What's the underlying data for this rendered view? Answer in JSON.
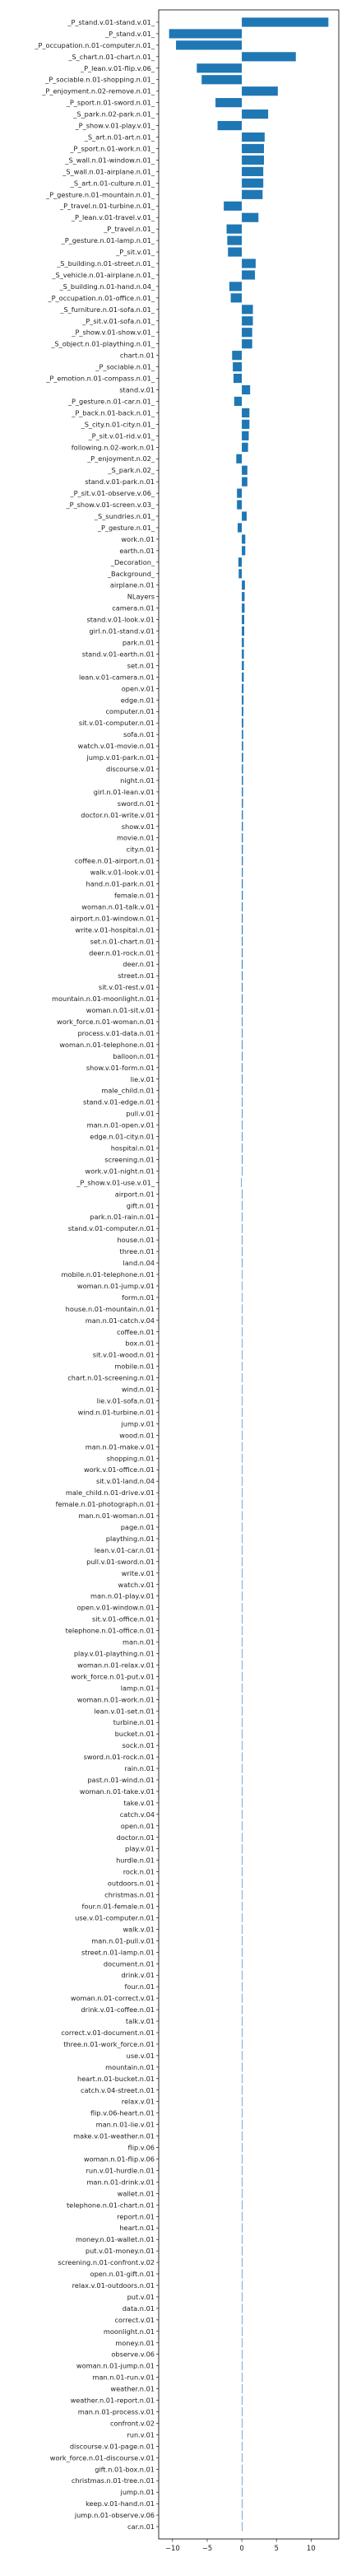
{
  "chart_data": {
    "type": "bar",
    "orientation": "horizontal",
    "bar_color": "#1f77b4",
    "xlim": [
      -12,
      14
    ],
    "xticks": [
      -10,
      -5,
      0,
      5,
      10
    ],
    "xtick_labels": [
      "−10",
      "−5",
      "0",
      "5",
      "10"
    ],
    "grid": false,
    "categories": [
      "_P_stand.v.01-stand.v.01_",
      "_P_stand.v.01_",
      "_P_occupation.n.01-computer.n.01_",
      "_S_chart.n.01-chart.n.01_",
      "_P_lean.v.01-flip.v.06_",
      "_P_sociable.n.01-shopping.n.01_",
      "_P_enjoyment.n.02-remove.n.01_",
      "_P_sport.n.01-sword.n.01_",
      "_S_park.n.02-park.n.01_",
      "_P_show.v.01-play.v.01_",
      "_S_art.n.01-art.n.01_",
      "_P_sport.n.01-work.n.01_",
      "_S_wall.n.01-window.n.01_",
      "_S_wall.n.01-airplane.n.01_",
      "_S_art.n.01-culture.n.01_",
      "_P_gesture.n.01-mountain.n.01_",
      "_P_travel.n.01-turbine.n.01_",
      "_P_lean.v.01-travel.v.01_",
      "_P_travel.n.01_",
      "_P_gesture.n.01-lamp.n.01_",
      "_P_sit.v.01_",
      "_S_building.n.01-street.n.01_",
      "_S_vehicle.n.01-airplane.n.01_",
      "_S_building.n.01-hand.n.04_",
      "_P_occupation.n.01-office.n.01_",
      "_S_furniture.n.01-sofa.n.01_",
      "_P_sit.v.01-sofa.n.01_",
      "_P_show.v.01-show.v.01_",
      "_S_object.n.01-plaything.n.01_",
      "chart.n.01",
      "_P_sociable.n.01_",
      "_P_emotion.n.01-compass.n.01_",
      "stand.v.01",
      "_P_gesture.n.01-car.n.01_",
      "_P_back.n.01-back.n.01_",
      "_S_city.n.01-city.n.01_",
      "_P_sit.v.01-rid.v.01_",
      "following.n.02-work.n.01",
      "_P_enjoyment.n.02_",
      "_S_park.n.02_",
      "stand.v.01-park.n.01",
      "_P_sit.v.01-observe.v.06_",
      "_P_show.v.01-screen.v.03_",
      "_S_sundries.n.01_",
      "_P_gesture.n.01_",
      "work.n.01",
      "earth.n.01",
      "_Decoration_",
      "_Background_",
      "airplane.n.01",
      "NLayers",
      "camera.n.01",
      "stand.v.01-look.v.01",
      "girl.n.01-stand.v.01",
      "park.n.01",
      "stand.v.01-earth.n.01",
      "set.n.01",
      "lean.v.01-camera.n.01",
      "open.v.01",
      "edge.n.01",
      "computer.n.01",
      "sit.v.01-computer.n.01",
      "sofa.n.01",
      "watch.v.01-movie.n.01",
      "jump.v.01-park.n.01",
      "discourse.v.01",
      "night.n.01",
      "girl.n.01-lean.v.01",
      "sword.n.01",
      "doctor.n.01-write.v.01",
      "show.v.01",
      "movie.n.01",
      "city.n.01",
      "coffee.n.01-airport.n.01",
      "walk.v.01-look.v.01",
      "hand.n.01-park.n.01",
      "female.n.01",
      "woman.n.01-talk.v.01",
      "airport.n.01-window.n.01",
      "write.v.01-hospital.n.01",
      "set.n.01-chart.n.01",
      "deer.n.01-rock.n.01",
      "deer.n.01",
      "street.n.01",
      "sit.v.01-rest.v.01",
      "mountain.n.01-moonlight.n.01",
      "woman.n.01-sit.v.01",
      "work_force.n.01-woman.n.01",
      "process.v.01-data.n.01",
      "woman.n.01-telephone.n.01",
      "balloon.n.01",
      "show.v.01-form.n.01",
      "lie.v.01",
      "male_child.n.01",
      "stand.v.01-edge.n.01",
      "pull.v.01",
      "man.n.01-open.v.01",
      "edge.n.01-city.n.01",
      "hospital.n.01",
      "screening.n.01",
      "work.v.01-night.n.01",
      "_P_show.v.01-use.v.01_",
      "airport.n.01",
      "gift.n.01",
      "park.n.01-rain.n.01",
      "stand.v.01-computer.n.01",
      "house.n.01",
      "three.n.01",
      "land.n.04",
      "mobile.n.01-telephone.n.01",
      "woman.n.01-jump.v.01",
      "form.n.01",
      "house.n.01-mountain.n.01",
      "man.n.01-catch.v.04",
      "coffee.n.01",
      "box.n.01",
      "sit.v.01-wood.n.01",
      "mobile.n.01",
      "chart.n.01-screening.n.01",
      "wind.n.01",
      "lie.v.01-sofa.n.01",
      "wind.n.01-turbine.n.01",
      "jump.v.01",
      "wood.n.01",
      "man.n.01-make.v.01",
      "shopping.n.01",
      "work.v.01-office.n.01",
      "sit.v.01-land.n.04",
      "male_child.n.01-drive.v.01",
      "female.n.01-photograph.n.01",
      "man.n.01-woman.n.01",
      "page.n.01",
      "plaything.n.01",
      "lean.v.01-car.n.01",
      "pull.v.01-sword.n.01",
      "write.v.01",
      "watch.v.01",
      "man.n.01-play.v.01",
      "open.v.01-window.n.01",
      "sit.v.01-office.n.01",
      "telephone.n.01-office.n.01",
      "man.n.01",
      "play.v.01-plaything.n.01",
      "woman.n.01-relax.v.01",
      "work_force.n.01-put.v.01",
      "lamp.n.01",
      "woman.n.01-work.n.01",
      "lean.v.01-set.n.01",
      "turbine.n.01",
      "bucket.n.01",
      "sock.n.01",
      "sword.n.01-rock.n.01",
      "rain.n.01",
      "past.n.01-wind.n.01",
      "woman.n.01-take.v.01",
      "take.v.01",
      "catch.v.04",
      "open.n.01",
      "doctor.n.01",
      "play.v.01",
      "hurdle.n.01",
      "rock.n.01",
      "outdoors.n.01",
      "christmas.n.01",
      "four.n.01-female.n.01",
      "use.v.01-computer.n.01",
      "walk.v.01",
      "man.n.01-pull.v.01",
      "street.n.01-lamp.n.01",
      "document.n.01",
      "drink.v.01",
      "four.n.01",
      "woman.n.01-correct.v.01",
      "drink.v.01-coffee.n.01",
      "talk.v.01",
      "correct.v.01-document.n.01",
      "three.n.01-work_force.n.01",
      "use.v.01",
      "mountain.n.01",
      "heart.n.01-bucket.n.01",
      "catch.v.04-street.n.01",
      "relax.v.01",
      "flip.v.06-heart.n.01",
      "man.n.01-lie.v.01",
      "make.v.01-weather.n.01",
      "flip.v.06",
      "woman.n.01-flip.v.06",
      "run.v.01-hurdle.n.01",
      "man.n.01-drink.v.01",
      "wallet.n.01",
      "telephone.n.01-chart.n.01",
      "report.n.01",
      "heart.n.01",
      "money.n.01-wallet.n.01",
      "put.v.01-money.n.01",
      "screening.n.01-confront.v.02",
      "open.n.01-gift.n.01",
      "relax.v.01-outdoors.n.01",
      "put.v.01",
      "data.n.01",
      "correct.v.01",
      "moonlight.n.01",
      "money.n.01",
      "observe.v.06",
      "woman.n.01-jump.n.01",
      "man.n.01-run.v.01",
      "weather.n.01",
      "weather.n.01-report.n.01",
      "man.n.01-process.v.01",
      "confront.v.02",
      "run.v.01",
      "discourse.v.01-page.n.01",
      "work_force.n.01-discourse.v.01",
      "gift.n.01-box.n.01",
      "christmas.n.01-tree.n.01",
      "jump.n.01",
      "keep.v.01-hand.n.01",
      "jump.n.01-observe.v.06",
      "car.n.01"
    ],
    "values": [
      12.5,
      -10.5,
      -9.5,
      7.8,
      -6.5,
      -5.8,
      5.2,
      -3.8,
      3.8,
      -3.5,
      3.3,
      3.2,
      3.2,
      3.1,
      3.1,
      3.0,
      -2.6,
      2.4,
      -2.2,
      -2.1,
      -2.0,
      2.0,
      1.9,
      -1.8,
      -1.6,
      1.6,
      1.6,
      1.5,
      1.5,
      -1.4,
      -1.3,
      -1.2,
      1.2,
      -1.1,
      1.1,
      1.1,
      1.0,
      0.9,
      -0.8,
      0.8,
      0.8,
      -0.7,
      -0.7,
      0.7,
      -0.6,
      0.5,
      0.5,
      -0.5,
      -0.45,
      0.45,
      0.4,
      0.4,
      0.35,
      0.35,
      0.3,
      0.3,
      0.3,
      0.28,
      0.25,
      0.25,
      0.22,
      0.22,
      0.2,
      0.2,
      0.2,
      0.18,
      0.18,
      0.17,
      0.17,
      0.16,
      0.16,
      0.15,
      0.15,
      0.15,
      0.14,
      0.14,
      0.14,
      0.13,
      0.13,
      0.13,
      0.12,
      0.12,
      0.12,
      0.12,
      0.11,
      0.11,
      0.11,
      0.1,
      0.1,
      0.1,
      0.1,
      0.1,
      0.1,
      0.09,
      0.09,
      0.09,
      0.09,
      0.09,
      0.09,
      0.09,
      0.08,
      -0.08,
      0.08,
      0.08,
      0.08,
      0.08,
      0.08,
      0.08,
      0.08,
      0.07,
      0.07,
      0.07,
      0.07,
      0.07,
      0.07,
      0.07,
      0.07,
      0.07,
      0.07,
      0.07,
      0.07,
      0.07,
      0.07,
      0.07,
      0.07,
      0.07,
      0.07,
      0.07,
      0.07,
      0.07,
      0.06,
      0.06,
      0.06,
      0.06,
      0.06,
      0.06,
      0.06,
      0.06,
      0.06,
      0.06,
      0.06,
      0.06,
      0.06,
      0.06,
      0.06,
      0.06,
      0.06,
      0.06,
      0.06,
      0.06,
      0.06,
      0.06,
      0.06,
      0.06,
      0.06,
      0.06,
      0.06,
      0.06,
      0.06,
      0.06,
      0.05,
      0.05,
      0.05,
      0.05,
      0.05,
      0.05,
      0.05,
      0.05,
      0.05,
      0.05,
      0.05,
      0.05,
      0.05,
      0.05,
      0.05,
      0.05,
      0.05,
      0.05,
      0.05,
      0.05,
      0.04,
      0.04,
      0.04,
      0.04,
      0.04,
      0.04,
      0.04,
      0.04,
      0.04,
      0.04,
      0.04,
      0.04,
      0.04,
      0.04,
      0.04,
      0.04,
      0.04,
      0.04,
      0.04,
      0.04,
      0.03,
      0.03,
      0.03,
      0.03,
      0.03,
      0.03,
      0.03,
      0.03,
      0.03,
      0.03,
      0.02,
      0.02,
      0.02,
      0.02,
      0.02,
      0.02,
      0.02,
      0.02,
      0.01
    ]
  }
}
